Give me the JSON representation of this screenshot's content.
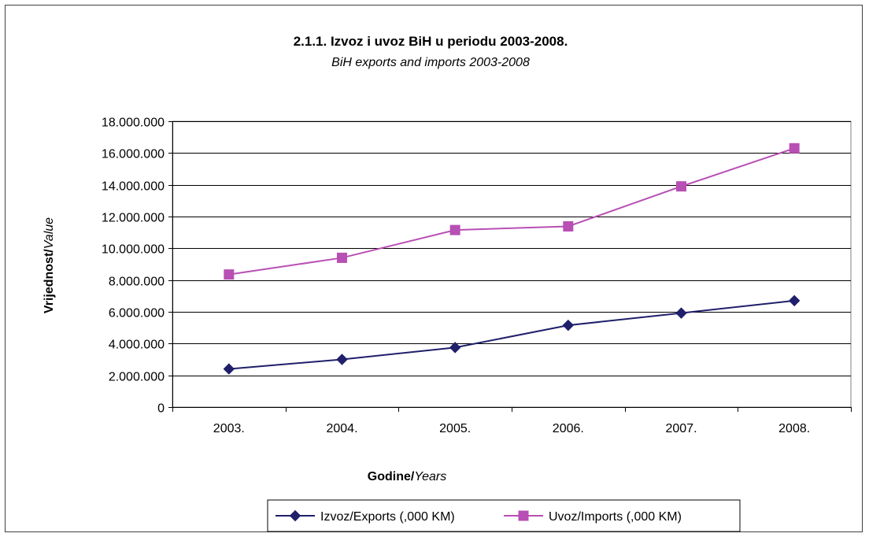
{
  "chart_data": {
    "type": "line",
    "title": "2.1.1. Izvoz i uvoz BiH u periodu 2003-2008.",
    "subtitle": "BiH exports and imports 2003-2008",
    "xlabel_bold": "Godine/",
    "xlabel_italic": "Years",
    "ylabel_bold": "Vrijednost/",
    "ylabel_italic": "Value",
    "categories": [
      "2003.",
      "2004.",
      "2005.",
      "2006.",
      "2007.",
      "2008."
    ],
    "ylim": [
      0,
      18000000
    ],
    "yticks": [
      0,
      2000000,
      4000000,
      6000000,
      8000000,
      10000000,
      12000000,
      14000000,
      16000000,
      18000000
    ],
    "ytick_labels": [
      "0",
      "2.000.000",
      "4.000.000",
      "6.000.000",
      "8.000.000",
      "10.000.000",
      "12.000.000",
      "14.000.000",
      "16.000.000",
      "18.000.000"
    ],
    "grid": true,
    "legend_position": "bottom",
    "series": [
      {
        "name": "Izvoz/Exports (,000 KM)",
        "color": "#1F1F6B",
        "marker": "diamond",
        "values": [
          2400000,
          3000000,
          3750000,
          5150000,
          5920000,
          6700000
        ]
      },
      {
        "name": "Uvoz/Imports (,000 KM)",
        "color": "#B84FB4",
        "marker": "square",
        "values": [
          8350000,
          9400000,
          11150000,
          11380000,
          13900000,
          16300000
        ]
      }
    ]
  }
}
